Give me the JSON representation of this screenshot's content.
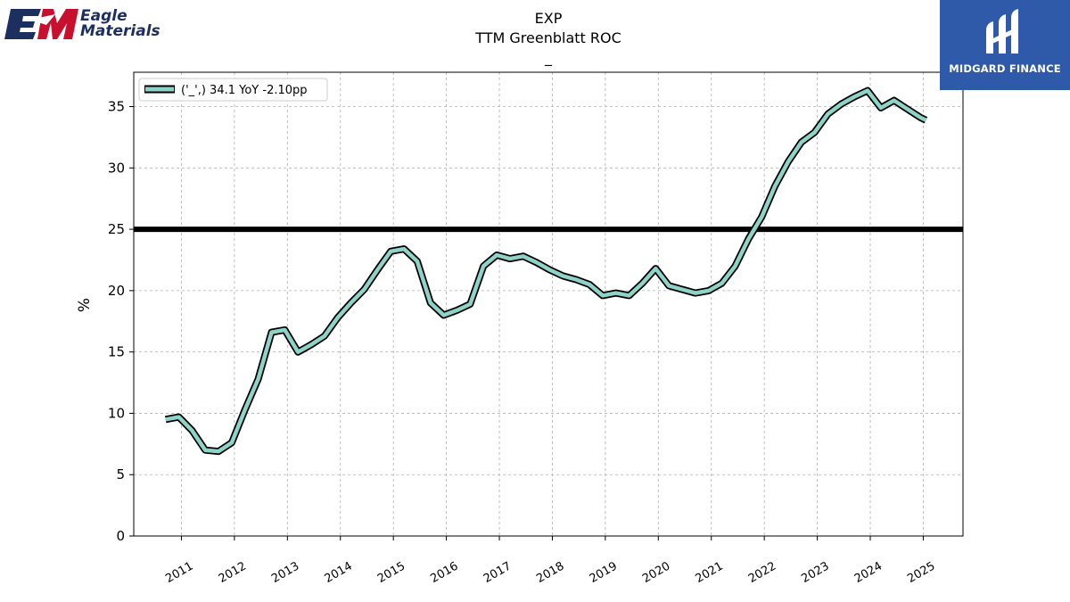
{
  "branding": {
    "left_logo_line1": "Eagle",
    "left_logo_line2": "Materials",
    "left_logo_mark": "EM",
    "right_logo_text": "MIDGARD FINANCE",
    "right_logo_icon": "midgard-m-icon"
  },
  "chart_data": {
    "type": "line",
    "title": "EXP",
    "subtitle": "TTM Greenblatt ROC",
    "subtitle2": "_",
    "ylabel": "%",
    "xlabel": "",
    "ylim": [
      0,
      37.8
    ],
    "yticks": [
      0,
      5,
      10,
      15,
      20,
      25,
      30,
      35
    ],
    "xticks": [
      "2011",
      "2012",
      "2013",
      "2014",
      "2015",
      "2016",
      "2017",
      "2018",
      "2019",
      "2020",
      "2021",
      "2022",
      "2023",
      "2024",
      "2025"
    ],
    "grid": true,
    "legend_position": "top-left",
    "reference_line": 25,
    "series": [
      {
        "name": "('_',) 34.1 YoY -2.10pp",
        "color": "#8dd3c7",
        "x": [
          2010.7,
          2010.95,
          2011.2,
          2011.45,
          2011.7,
          2011.95,
          2012.2,
          2012.45,
          2012.7,
          2012.95,
          2013.2,
          2013.45,
          2013.7,
          2013.95,
          2014.2,
          2014.45,
          2014.7,
          2014.95,
          2015.2,
          2015.45,
          2015.7,
          2015.95,
          2016.2,
          2016.45,
          2016.7,
          2016.95,
          2017.2,
          2017.45,
          2017.7,
          2017.95,
          2018.2,
          2018.45,
          2018.7,
          2018.95,
          2019.2,
          2019.45,
          2019.7,
          2019.95,
          2020.2,
          2020.45,
          2020.7,
          2020.95,
          2021.2,
          2021.45,
          2021.7,
          2021.95,
          2022.2,
          2022.45,
          2022.7,
          2022.95,
          2023.2,
          2023.45,
          2023.7,
          2023.95,
          2024.2,
          2024.45,
          2024.7,
          2024.95,
          2025.05
        ],
        "values": [
          9.5,
          9.7,
          8.6,
          7.0,
          6.9,
          7.6,
          10.3,
          12.8,
          16.6,
          16.8,
          15.0,
          15.6,
          16.3,
          17.8,
          19.0,
          20.1,
          21.7,
          23.2,
          23.4,
          22.4,
          19.0,
          18.0,
          18.4,
          18.9,
          22.0,
          22.9,
          22.6,
          22.8,
          22.3,
          21.7,
          21.2,
          20.9,
          20.5,
          19.6,
          19.8,
          19.6,
          20.6,
          21.8,
          20.4,
          20.1,
          19.8,
          20.0,
          20.6,
          22.0,
          24.2,
          26.0,
          28.5,
          30.5,
          32.1,
          32.9,
          34.4,
          35.2,
          35.8,
          36.3,
          34.9,
          35.5,
          34.8,
          34.1,
          33.9
        ]
      }
    ]
  }
}
